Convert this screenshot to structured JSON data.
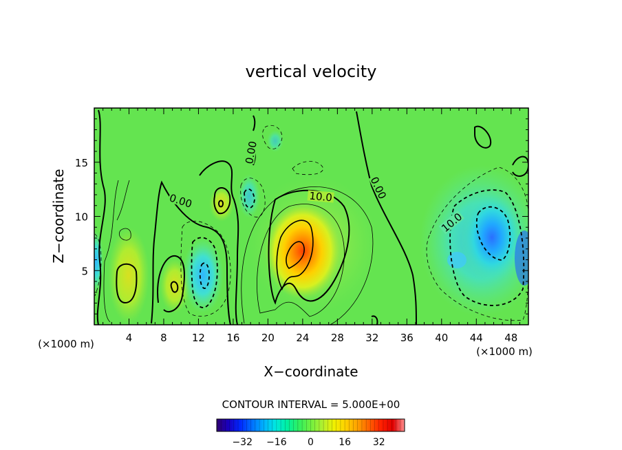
{
  "chart_data": {
    "type": "heatmap",
    "title": "vertical velocity",
    "xlabel": "X−coordinate",
    "ylabel": "Z−coordinate",
    "x_unit": "(×1000 m)",
    "x_unit_right": "(×1000 m)",
    "xlim": [
      0,
      50
    ],
    "ylim": [
      0,
      20
    ],
    "x_ticks": [
      4,
      8,
      12,
      16,
      20,
      24,
      28,
      32,
      36,
      40,
      44,
      48
    ],
    "y_ticks": [
      5,
      10,
      15
    ],
    "contour_interval_label": "CONTOUR INTERVAL = 5.000E+00",
    "colorbar": {
      "range": [
        -44,
        44
      ],
      "ticks": [
        -32,
        -16,
        0,
        16,
        32
      ],
      "tick_labels": [
        "−32",
        "−16",
        "0",
        "16",
        "32"
      ],
      "colors": [
        "#300070",
        "#1800c0",
        "#0028ff",
        "#0070ff",
        "#00b0ff",
        "#00e8e0",
        "#00f0a0",
        "#30f060",
        "#70f040",
        "#b0f030",
        "#f0f000",
        "#ffd000",
        "#ffa000",
        "#ff6000",
        "#ff2000",
        "#e00000",
        "#ff9090"
      ]
    },
    "contour_labels": [
      {
        "text": "0.00",
        "x": 18.5,
        "y": 16.3
      },
      {
        "text": "0.00",
        "x": 10.0,
        "y": 11.2
      },
      {
        "text": "10.0",
        "x": 26.0,
        "y": 11.8
      },
      {
        "text": "0.00",
        "x": 33.0,
        "y": 12.3
      },
      {
        "text": "10.0",
        "x": 41.5,
        "y": 9.3
      }
    ],
    "features": [
      {
        "kind": "updraft",
        "x": 23,
        "z": 7.5,
        "peak": 30
      },
      {
        "kind": "downdraft",
        "x": 46,
        "z": 8,
        "peak": -25
      },
      {
        "kind": "updraft",
        "x": 4,
        "z": 4,
        "peak": 9
      },
      {
        "kind": "updraft",
        "x": 9.5,
        "z": 3.5,
        "peak": 8
      },
      {
        "kind": "downdraft",
        "x": 12.5,
        "z": 4,
        "peak": -14
      },
      {
        "kind": "updraft",
        "x": 14.5,
        "z": 11,
        "peak": 8
      },
      {
        "kind": "downdraft",
        "x": 18,
        "z": 11.5,
        "peak": -8
      }
    ]
  }
}
